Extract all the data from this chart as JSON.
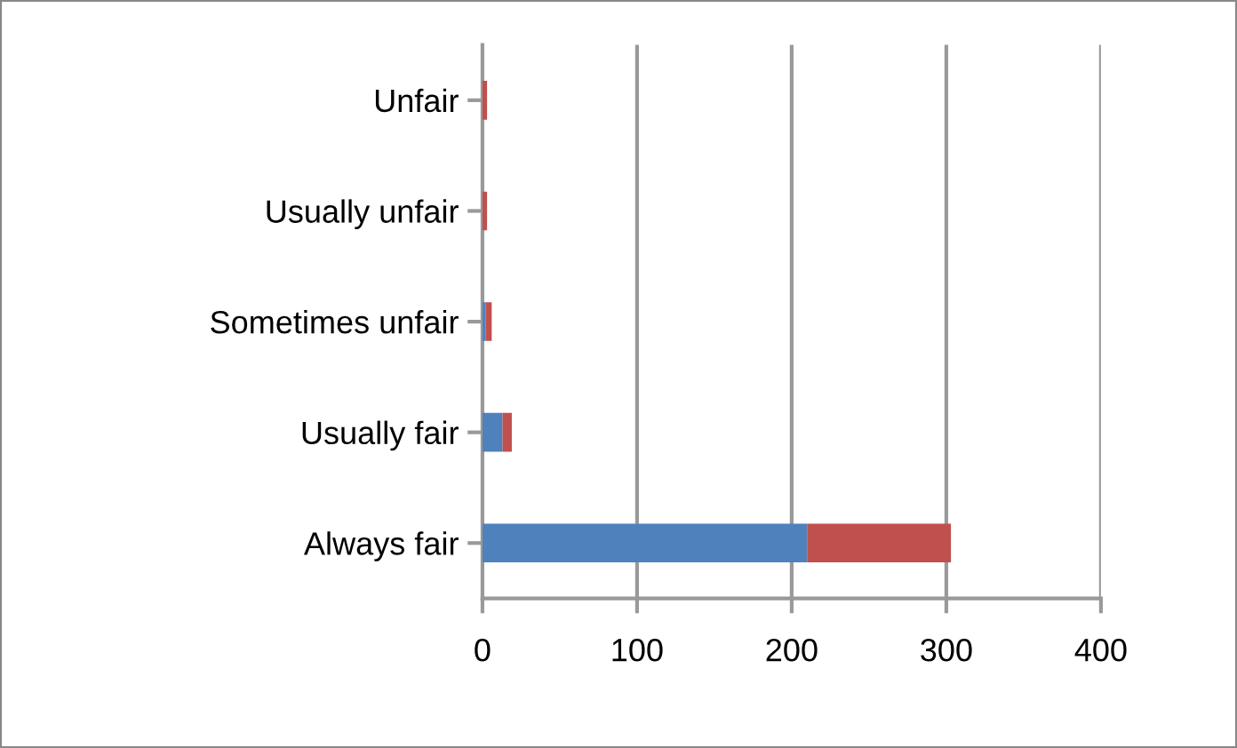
{
  "chart_data": {
    "type": "bar",
    "orientation": "horizontal",
    "stacked": true,
    "categories": [
      "Unfair",
      "Usually unfair",
      "Sometimes unfair",
      "Usually fair",
      "Always fair"
    ],
    "series": [
      {
        "color": "#4f81bd",
        "values": [
          0,
          0,
          2,
          13,
          210
        ]
      },
      {
        "color": "#c0504d",
        "values": [
          3,
          3,
          4,
          6,
          93
        ]
      }
    ],
    "xlim": [
      0,
      400
    ],
    "xticks": [
      0,
      100,
      200,
      300,
      400
    ],
    "grid": "x"
  }
}
